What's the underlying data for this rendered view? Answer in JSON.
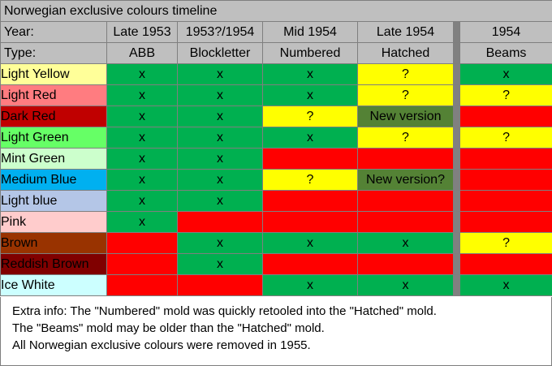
{
  "title": "Norwegian exclusive colours timeline",
  "year_row": {
    "label": "Year:",
    "values": [
      "Late 1953",
      "1953?/1954",
      "Mid 1954",
      "Late 1954",
      "1954"
    ]
  },
  "type_row": {
    "label": "Type:",
    "values": [
      "ABB",
      "Blockletter",
      "Numbered",
      "Hatched",
      "Beams"
    ]
  },
  "status_colors": {
    "green": "#00b050",
    "yellow": "#ffff00",
    "red": "#ff0000",
    "dark_green": "#548235"
  },
  "rows": [
    {
      "name": "Light Yellow",
      "swatch": "#ffff99",
      "cells": [
        {
          "v": "x",
          "c": "green"
        },
        {
          "v": "x",
          "c": "green"
        },
        {
          "v": "x",
          "c": "green"
        },
        {
          "v": "?",
          "c": "yellow"
        },
        {
          "v": "x",
          "c": "green"
        }
      ]
    },
    {
      "name": "Light Red",
      "swatch": "#ff7c80",
      "cells": [
        {
          "v": "x",
          "c": "green"
        },
        {
          "v": "x",
          "c": "green"
        },
        {
          "v": "x",
          "c": "green"
        },
        {
          "v": "?",
          "c": "yellow"
        },
        {
          "v": "?",
          "c": "yellow"
        }
      ]
    },
    {
      "name": "Dark Red",
      "swatch": "#c00000",
      "cells": [
        {
          "v": "x",
          "c": "green"
        },
        {
          "v": "x",
          "c": "green"
        },
        {
          "v": "?",
          "c": "yellow"
        },
        {
          "v": "New version",
          "c": "dark_green"
        },
        {
          "v": "",
          "c": "red"
        }
      ]
    },
    {
      "name": "Light Green",
      "swatch": "#66ff66",
      "cells": [
        {
          "v": "x",
          "c": "green"
        },
        {
          "v": "x",
          "c": "green"
        },
        {
          "v": "x",
          "c": "green"
        },
        {
          "v": "?",
          "c": "yellow"
        },
        {
          "v": "?",
          "c": "yellow"
        }
      ]
    },
    {
      "name": "Mint Green",
      "swatch": "#ccffcc",
      "cells": [
        {
          "v": "x",
          "c": "green"
        },
        {
          "v": "x",
          "c": "green"
        },
        {
          "v": "",
          "c": "red"
        },
        {
          "v": "",
          "c": "red"
        },
        {
          "v": "",
          "c": "red"
        }
      ]
    },
    {
      "name": "Medium Blue",
      "swatch": "#00b0f0",
      "cells": [
        {
          "v": "x",
          "c": "green"
        },
        {
          "v": "x",
          "c": "green"
        },
        {
          "v": "?",
          "c": "yellow"
        },
        {
          "v": "New version?",
          "c": "dark_green"
        },
        {
          "v": "",
          "c": "red"
        }
      ]
    },
    {
      "name": "Light blue",
      "swatch": "#b4c6e7",
      "cells": [
        {
          "v": "x",
          "c": "green"
        },
        {
          "v": "x",
          "c": "green"
        },
        {
          "v": "",
          "c": "red"
        },
        {
          "v": "",
          "c": "red"
        },
        {
          "v": "",
          "c": "red"
        }
      ]
    },
    {
      "name": "Pink",
      "swatch": "#ffcccc",
      "cells": [
        {
          "v": "x",
          "c": "green"
        },
        {
          "v": "",
          "c": "red"
        },
        {
          "v": "",
          "c": "red"
        },
        {
          "v": "",
          "c": "red"
        },
        {
          "v": "",
          "c": "red"
        }
      ]
    },
    {
      "name": "Brown",
      "swatch": "#993300",
      "cells": [
        {
          "v": "",
          "c": "red"
        },
        {
          "v": "x",
          "c": "green"
        },
        {
          "v": "x",
          "c": "green"
        },
        {
          "v": "x",
          "c": "green"
        },
        {
          "v": "?",
          "c": "yellow"
        }
      ]
    },
    {
      "name": "Reddish Brown",
      "swatch": "#800000",
      "cells": [
        {
          "v": "",
          "c": "red"
        },
        {
          "v": "x",
          "c": "green"
        },
        {
          "v": "",
          "c": "red"
        },
        {
          "v": "",
          "c": "red"
        },
        {
          "v": "",
          "c": "red"
        }
      ]
    },
    {
      "name": "Ice White",
      "swatch": "#ccffff",
      "cells": [
        {
          "v": "",
          "c": "red"
        },
        {
          "v": "",
          "c": "red"
        },
        {
          "v": "x",
          "c": "green"
        },
        {
          "v": "x",
          "c": "green"
        },
        {
          "v": "x",
          "c": "green"
        }
      ]
    }
  ],
  "extra_info": [
    "Extra info: The \"Numbered\" mold was quickly retooled into the \"Hatched\" mold.",
    "The \"Beams\" mold may be older than the \"Hatched\" mold.",
    "All Norwegian exclusive colours were removed in 1955."
  ]
}
